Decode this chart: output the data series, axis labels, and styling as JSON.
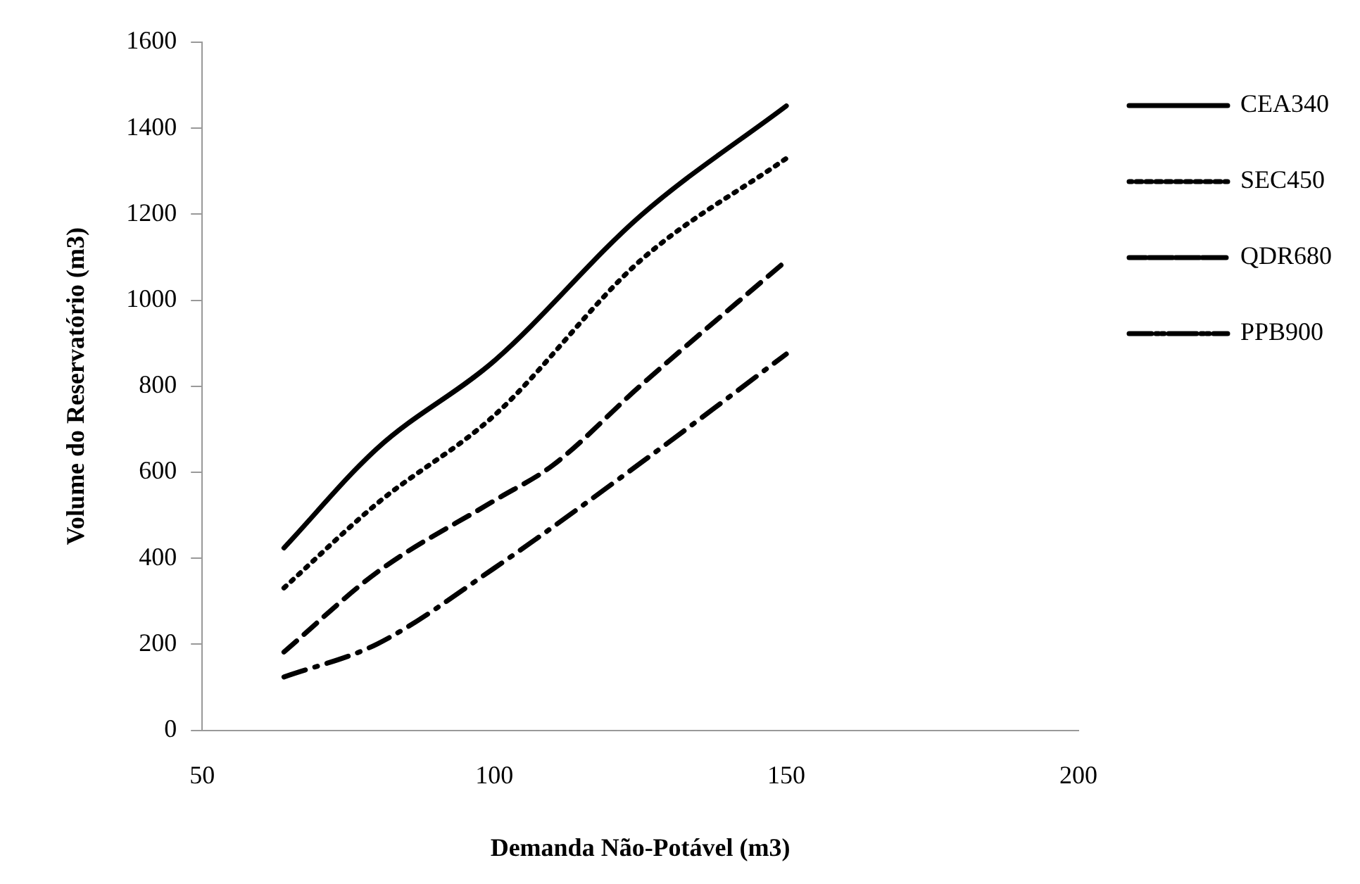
{
  "chart_data": {
    "type": "line",
    "xlabel": "Demanda Não-Potável (m3)",
    "ylabel": "Volume do Reservatório (m3)",
    "xlim": [
      50,
      200
    ],
    "xticks": [
      50,
      100,
      150,
      200
    ],
    "ylim": [
      0,
      1600
    ],
    "yticks": [
      0,
      200,
      400,
      600,
      800,
      1000,
      1200,
      1400,
      1600
    ],
    "grid": false,
    "legend": "right",
    "marker": "none",
    "series": [
      {
        "name": "CEA340",
        "color": "#000000",
        "line_style": "solid",
        "x": [
          64,
          80,
          100,
          125,
          150
        ],
        "values": [
          424,
          656,
          859,
          1196,
          1452
        ]
      },
      {
        "name": "SEC450",
        "color": "#000000",
        "line_style": "dotted",
        "x": [
          64,
          80,
          100,
          125,
          150
        ],
        "values": [
          331,
          528,
          732,
          1092,
          1330
        ]
      },
      {
        "name": "QDR680",
        "color": "#000000",
        "line_style": "dashed",
        "x": [
          64,
          80,
          100,
          110,
          125,
          150
        ],
        "values": [
          182,
          368,
          534,
          616,
          801,
          1092
        ]
      },
      {
        "name": "PPB900",
        "color": "#000000",
        "line_style": "dashdot",
        "x": [
          64,
          80,
          100,
          125,
          150
        ],
        "values": [
          124,
          201,
          377,
          621,
          875
        ]
      }
    ]
  }
}
